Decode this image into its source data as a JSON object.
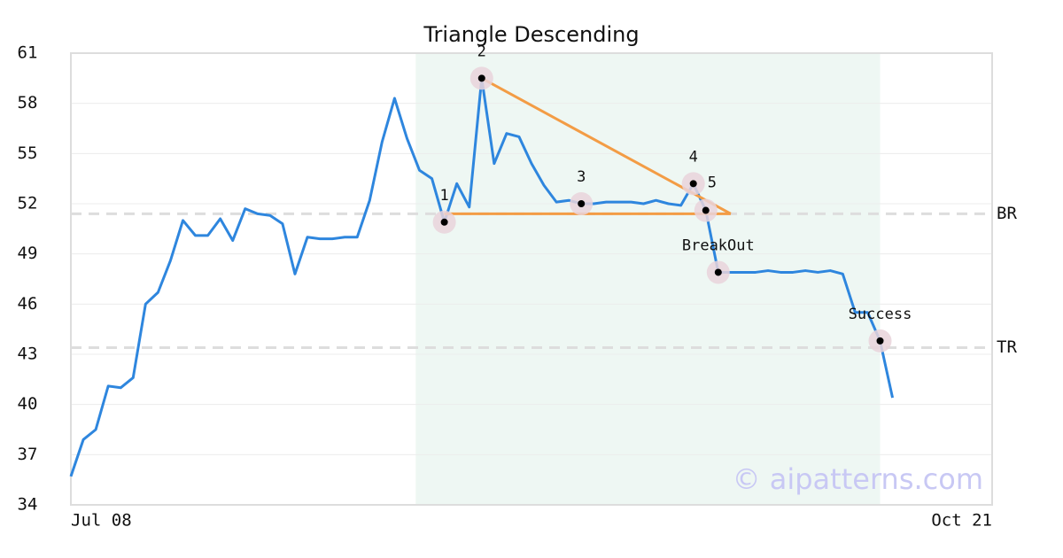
{
  "chart_data": {
    "type": "line",
    "title": "Triangle Descending",
    "categories": [
      "Jul 08",
      null,
      null,
      null,
      null,
      null,
      null,
      null,
      null,
      null,
      null,
      null,
      null,
      null,
      null,
      null,
      null,
      null,
      null,
      null,
      null,
      null,
      null,
      null,
      null,
      null,
      null,
      null,
      null,
      null,
      null,
      null,
      null,
      null,
      null,
      null,
      null,
      null,
      null,
      null,
      null,
      null,
      null,
      null,
      null,
      null,
      null,
      null,
      null,
      null,
      null,
      null,
      null,
      null,
      null,
      null,
      null,
      null,
      null,
      null,
      null,
      null,
      null,
      null,
      null,
      null,
      null,
      null,
      null,
      null,
      null,
      null,
      null,
      null,
      "Oct 21"
    ],
    "series": [
      {
        "color": "#2e86de",
        "values": [
          35.7,
          37.9,
          38.5,
          41.1,
          41.0,
          41.6,
          46.0,
          46.7,
          48.6,
          51.0,
          50.1,
          50.1,
          51.1,
          49.8,
          51.7,
          51.4,
          51.3,
          50.8,
          47.8,
          50.0,
          49.9,
          49.9,
          50.0,
          50.0,
          52.2,
          55.7,
          58.3,
          55.9,
          54.0,
          53.5,
          50.9,
          53.2,
          51.8,
          59.5,
          54.4,
          56.2,
          56.0,
          54.4,
          53.1,
          52.1,
          52.2,
          52.0,
          52.0,
          52.1,
          52.1,
          52.1,
          52.0,
          52.2,
          52.0,
          51.9,
          53.2,
          51.6,
          47.9,
          47.9,
          47.9,
          47.9,
          48.0,
          47.9,
          47.9,
          48.0,
          47.9,
          48.0,
          47.8,
          45.5,
          45.5,
          43.8,
          40.4,
          null,
          null,
          null,
          null,
          null,
          null,
          null,
          null
        ],
        "point_labels": [
          null,
          null,
          null,
          null,
          null,
          null,
          null,
          null,
          null,
          null,
          null,
          null,
          null,
          null,
          null,
          null,
          null,
          null,
          null,
          null,
          null,
          null,
          null,
          null,
          null,
          null,
          null,
          null,
          null,
          null,
          "1",
          null,
          null,
          "2",
          null,
          null,
          null,
          null,
          null,
          null,
          null,
          "3",
          null,
          null,
          null,
          null,
          null,
          null,
          null,
          null,
          "4",
          "5",
          "BreakOut",
          null,
          null,
          null,
          null,
          null,
          null,
          null,
          null,
          null,
          null,
          null,
          null,
          "Success",
          null,
          null,
          null,
          null,
          null,
          null,
          null,
          null,
          null
        ]
      }
    ],
    "trendlines": [
      {
        "color": "#f39c45",
        "from": [
          33,
          59.5
        ],
        "to": [
          53,
          51.4
        ]
      },
      {
        "color": "#f39c45",
        "from": [
          30,
          51.4
        ],
        "to": [
          53,
          51.4
        ]
      }
    ],
    "levels": [
      {
        "label": "BR",
        "value": 51.4
      },
      {
        "label": "TR",
        "value": 43.4
      }
    ],
    "highlight": [
      27.7,
      65
    ],
    "ylim": [
      34,
      61
    ],
    "yticks": [
      34,
      37,
      40,
      43,
      46,
      49,
      52,
      55,
      58,
      61
    ],
    "grid": true,
    "watermark": "© aipatterns.com"
  }
}
